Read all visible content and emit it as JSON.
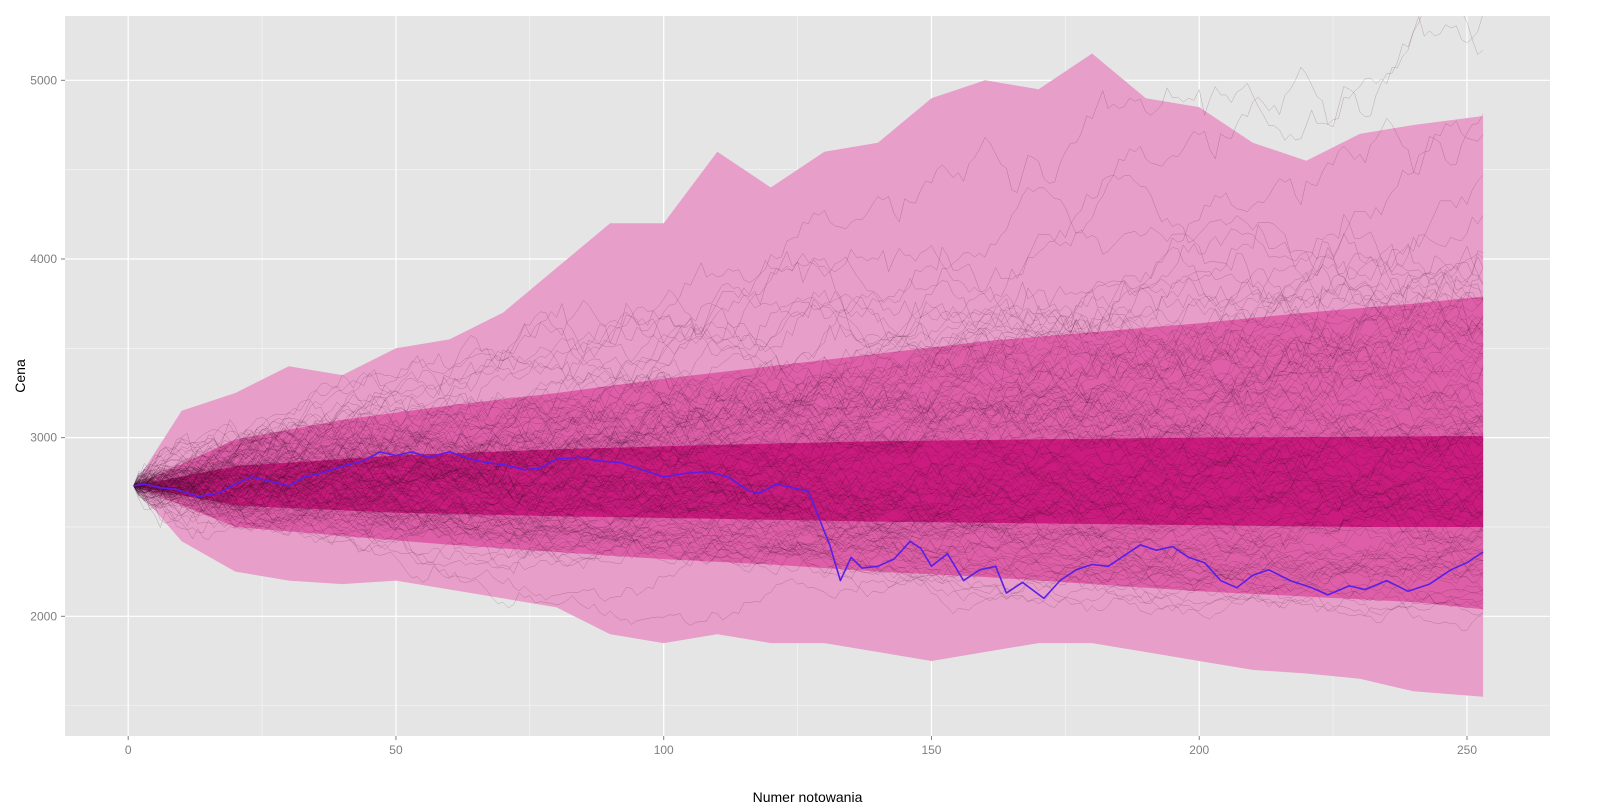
{
  "chart_data": {
    "type": "area",
    "title": "",
    "xlabel": "Numer notowania",
    "ylabel": "Cena",
    "xlim": [
      -11.8,
      265.5
    ],
    "ylim": [
      1330,
      5360
    ],
    "x_ticks": [
      0,
      50,
      100,
      150,
      200,
      250
    ],
    "x_tick_labels": [
      "0",
      "50",
      "100",
      "150",
      "200",
      "250"
    ],
    "y_ticks": [
      2000,
      3000,
      4000,
      5000
    ],
    "y_tick_labels": [
      "2000",
      "3000",
      "4000",
      "5000"
    ],
    "grid": true,
    "background_color": "#e5e5e5",
    "grid_color": "#ffffff",
    "start": {
      "x": 1,
      "y": 2730
    },
    "bands": [
      {
        "name": "outer",
        "color": "#e79ec8",
        "x": [
          1,
          10,
          20,
          30,
          40,
          50,
          60,
          70,
          80,
          90,
          100,
          110,
          120,
          130,
          140,
          150,
          160,
          170,
          180,
          190,
          200,
          210,
          220,
          230,
          240,
          253
        ],
        "upper": [
          2730,
          3150,
          3250,
          3400,
          3350,
          3500,
          3550,
          3700,
          3950,
          4200,
          4200,
          4600,
          4400,
          4600,
          4650,
          4900,
          5000,
          4950,
          5150,
          4900,
          4850,
          4650,
          4550,
          4700,
          4750,
          4800
        ],
        "lower": [
          2730,
          2420,
          2250,
          2200,
          2180,
          2200,
          2150,
          2100,
          2050,
          1900,
          1850,
          1900,
          1850,
          1850,
          1800,
          1750,
          1800,
          1850,
          1850,
          1800,
          1750,
          1700,
          1680,
          1650,
          1580,
          1550
        ]
      },
      {
        "name": "middle",
        "color": "#de5fa8",
        "x": [
          1,
          20,
          40,
          60,
          80,
          100,
          120,
          140,
          160,
          180,
          200,
          220,
          240,
          253
        ],
        "upper": [
          2730,
          2990,
          3100,
          3180,
          3250,
          3330,
          3400,
          3470,
          3540,
          3590,
          3640,
          3700,
          3750,
          3790
        ],
        "lower": [
          2730,
          2500,
          2450,
          2400,
          2360,
          2320,
          2290,
          2250,
          2220,
          2180,
          2140,
          2110,
          2080,
          2040
        ]
      },
      {
        "name": "inner",
        "color": "#cb1b7e",
        "x": [
          1,
          20,
          50,
          80,
          110,
          140,
          170,
          200,
          230,
          253
        ],
        "upper": [
          2730,
          2840,
          2900,
          2935,
          2960,
          2980,
          2990,
          3000,
          3005,
          3010
        ],
        "lower": [
          2730,
          2620,
          2580,
          2560,
          2545,
          2530,
          2520,
          2510,
          2500,
          2500
        ]
      }
    ],
    "simulated_paths": {
      "color": "#3a0a26",
      "count": 140,
      "steps": 253,
      "start": 2730,
      "note": ""
    },
    "series": [
      {
        "name": "",
        "color": "#5a1fe6",
        "x": [
          1,
          3,
          6,
          9,
          13,
          17,
          20,
          23,
          26,
          30,
          33,
          36,
          40,
          44,
          47,
          50,
          53,
          56,
          60,
          64,
          67,
          70,
          74,
          77,
          80,
          84,
          88,
          92,
          96,
          100,
          104,
          108,
          112,
          116,
          118,
          121,
          124,
          127,
          129,
          131,
          133,
          135,
          137,
          140,
          143,
          146,
          148,
          150,
          153,
          156,
          159,
          162,
          164,
          167,
          171,
          174,
          177,
          180,
          183,
          186,
          189,
          192,
          195,
          198,
          201,
          204,
          207,
          210,
          213,
          217,
          221,
          224,
          228,
          231,
          235,
          239,
          243,
          247,
          250,
          253
        ],
        "y": [
          2730,
          2740,
          2720,
          2710,
          2670,
          2690,
          2740,
          2780,
          2760,
          2730,
          2780,
          2800,
          2840,
          2870,
          2920,
          2900,
          2920,
          2890,
          2920,
          2880,
          2860,
          2850,
          2820,
          2830,
          2880,
          2890,
          2870,
          2860,
          2820,
          2780,
          2800,
          2810,
          2780,
          2700,
          2690,
          2740,
          2720,
          2700,
          2550,
          2400,
          2200,
          2330,
          2270,
          2280,
          2320,
          2420,
          2380,
          2280,
          2350,
          2200,
          2260,
          2280,
          2130,
          2190,
          2100,
          2200,
          2260,
          2290,
          2280,
          2340,
          2400,
          2370,
          2390,
          2330,
          2300,
          2200,
          2160,
          2230,
          2260,
          2200,
          2160,
          2120,
          2170,
          2150,
          2200,
          2140,
          2180,
          2260,
          2300,
          2360
        ]
      }
    ]
  }
}
